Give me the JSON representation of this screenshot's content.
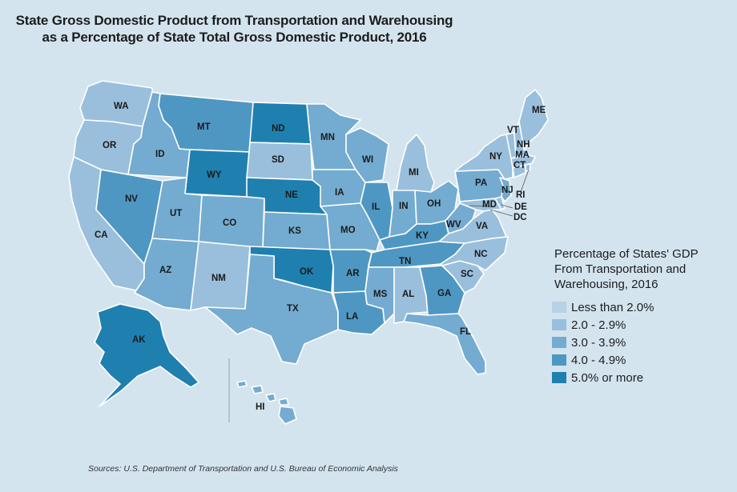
{
  "title_lines": [
    "State Gross Domestic Product from Transportation and Warehousing",
    "as a Percentage of State Total Gross Domestic Product, 2016"
  ],
  "legend": {
    "title_lines": [
      "Percentage of States' GDP",
      "From Transportation and",
      "Warehousing, 2016"
    ],
    "items": [
      {
        "label": "Less than 2.0%",
        "color": "#b7d1e6"
      },
      {
        "label": "2.0 - 2.9%",
        "color": "#99bfdc"
      },
      {
        "label": "3.0 - 3.9%",
        "color": "#74abd0"
      },
      {
        "label": "4.0 - 4.9%",
        "color": "#4f97c3"
      },
      {
        "label": "5.0% or more",
        "color": "#1f80b0"
      }
    ]
  },
  "states": [
    {
      "code": "WA",
      "class": "2.0 - 2.9%"
    },
    {
      "code": "OR",
      "class": "2.0 - 2.9%"
    },
    {
      "code": "CA",
      "class": "2.0 - 2.9%"
    },
    {
      "code": "NV",
      "class": "4.0 - 4.9%"
    },
    {
      "code": "ID",
      "class": "3.0 - 3.9%"
    },
    {
      "code": "MT",
      "class": "4.0 - 4.9%"
    },
    {
      "code": "WY",
      "class": "5.0% or more"
    },
    {
      "code": "UT",
      "class": "3.0 - 3.9%"
    },
    {
      "code": "AZ",
      "class": "3.0 - 3.9%"
    },
    {
      "code": "CO",
      "class": "3.0 - 3.9%"
    },
    {
      "code": "NM",
      "class": "2.0 - 2.9%"
    },
    {
      "code": "ND",
      "class": "5.0% or more"
    },
    {
      "code": "SD",
      "class": "2.0 - 2.9%"
    },
    {
      "code": "NE",
      "class": "5.0% or more"
    },
    {
      "code": "KS",
      "class": "3.0 - 3.9%"
    },
    {
      "code": "OK",
      "class": "5.0% or more"
    },
    {
      "code": "TX",
      "class": "3.0 - 3.9%"
    },
    {
      "code": "MN",
      "class": "3.0 - 3.9%"
    },
    {
      "code": "IA",
      "class": "3.0 - 3.9%"
    },
    {
      "code": "MO",
      "class": "3.0 - 3.9%"
    },
    {
      "code": "AR",
      "class": "4.0 - 4.9%"
    },
    {
      "code": "LA",
      "class": "4.0 - 4.9%"
    },
    {
      "code": "WI",
      "class": "3.0 - 3.9%"
    },
    {
      "code": "IL",
      "class": "4.0 - 4.9%"
    },
    {
      "code": "MI",
      "class": "2.0 - 2.9%"
    },
    {
      "code": "IN",
      "class": "3.0 - 3.9%"
    },
    {
      "code": "OH",
      "class": "3.0 - 3.9%"
    },
    {
      "code": "KY",
      "class": "4.0 - 4.9%"
    },
    {
      "code": "TN",
      "class": "4.0 - 4.9%"
    },
    {
      "code": "MS",
      "class": "3.0 - 3.9%"
    },
    {
      "code": "AL",
      "class": "2.0 - 2.9%"
    },
    {
      "code": "GA",
      "class": "4.0 - 4.9%"
    },
    {
      "code": "FL",
      "class": "3.0 - 3.9%"
    },
    {
      "code": "SC",
      "class": "2.0 - 2.9%"
    },
    {
      "code": "NC",
      "class": "2.0 - 2.9%"
    },
    {
      "code": "VA",
      "class": "2.0 - 2.9%"
    },
    {
      "code": "WV",
      "class": "3.0 - 3.9%"
    },
    {
      "code": "PA",
      "class": "3.0 - 3.9%"
    },
    {
      "code": "NY",
      "class": "2.0 - 2.9%"
    },
    {
      "code": "VT",
      "class": "2.0 - 2.9%"
    },
    {
      "code": "NH",
      "class": "2.0 - 2.9%"
    },
    {
      "code": "ME",
      "class": "2.0 - 2.9%"
    },
    {
      "code": "MA",
      "class": "2.0 - 2.9%"
    },
    {
      "code": "CT",
      "class": "2.0 - 2.9%"
    },
    {
      "code": "RI",
      "class": "2.0 - 2.9%"
    },
    {
      "code": "NJ",
      "class": "3.0 - 3.9%"
    },
    {
      "code": "DE",
      "class": "2.0 - 2.9%"
    },
    {
      "code": "MD",
      "class": "2.0 - 2.9%"
    },
    {
      "code": "DC",
      "class": "Less than 2.0%"
    },
    {
      "code": "AK",
      "class": "5.0% or more"
    },
    {
      "code": "HI",
      "class": "3.0 - 3.9%"
    }
  ],
  "source": "Sources: U.S. Department of Transportation and U.S. Bureau of Economic Analysis"
}
